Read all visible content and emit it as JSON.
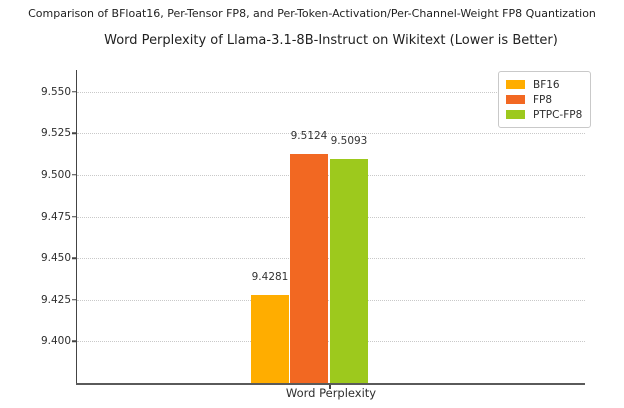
{
  "chart_data": {
    "type": "bar",
    "suptitle": "Comparison of BFloat16, Per-Tensor FP8, and Per-Token-Activation/Per-Channel-Weight FP8 Quantization",
    "title": "Word Perplexity of Llama-3.1-8B-Instruct on Wikitext (Lower is Better)",
    "categories": [
      "Word Perplexity"
    ],
    "series": [
      {
        "name": "BF16",
        "color": "#FFAD00",
        "values": [
          9.4281
        ]
      },
      {
        "name": "FP8",
        "color": "#F26822",
        "values": [
          9.5124
        ]
      },
      {
        "name": "PTPC-FP8",
        "color": "#9DC91D",
        "values": [
          9.5093
        ]
      }
    ],
    "bar_labels": [
      "9.4281",
      "9.5124",
      "9.5093"
    ],
    "yticks": [
      9.55,
      9.525,
      9.5,
      9.475,
      9.45,
      9.425,
      9.4
    ],
    "ytick_labels": [
      "9.550",
      "9.525",
      "9.500",
      "9.475",
      "9.450",
      "9.425",
      "9.400"
    ],
    "ylim": [
      9.375,
      9.563
    ],
    "xlabel": "Word Perplexity",
    "grid": "horizontal-dotted",
    "legend_position": "upper-right",
    "legend": [
      "BF16",
      "FP8",
      "PTPC-FP8"
    ]
  }
}
